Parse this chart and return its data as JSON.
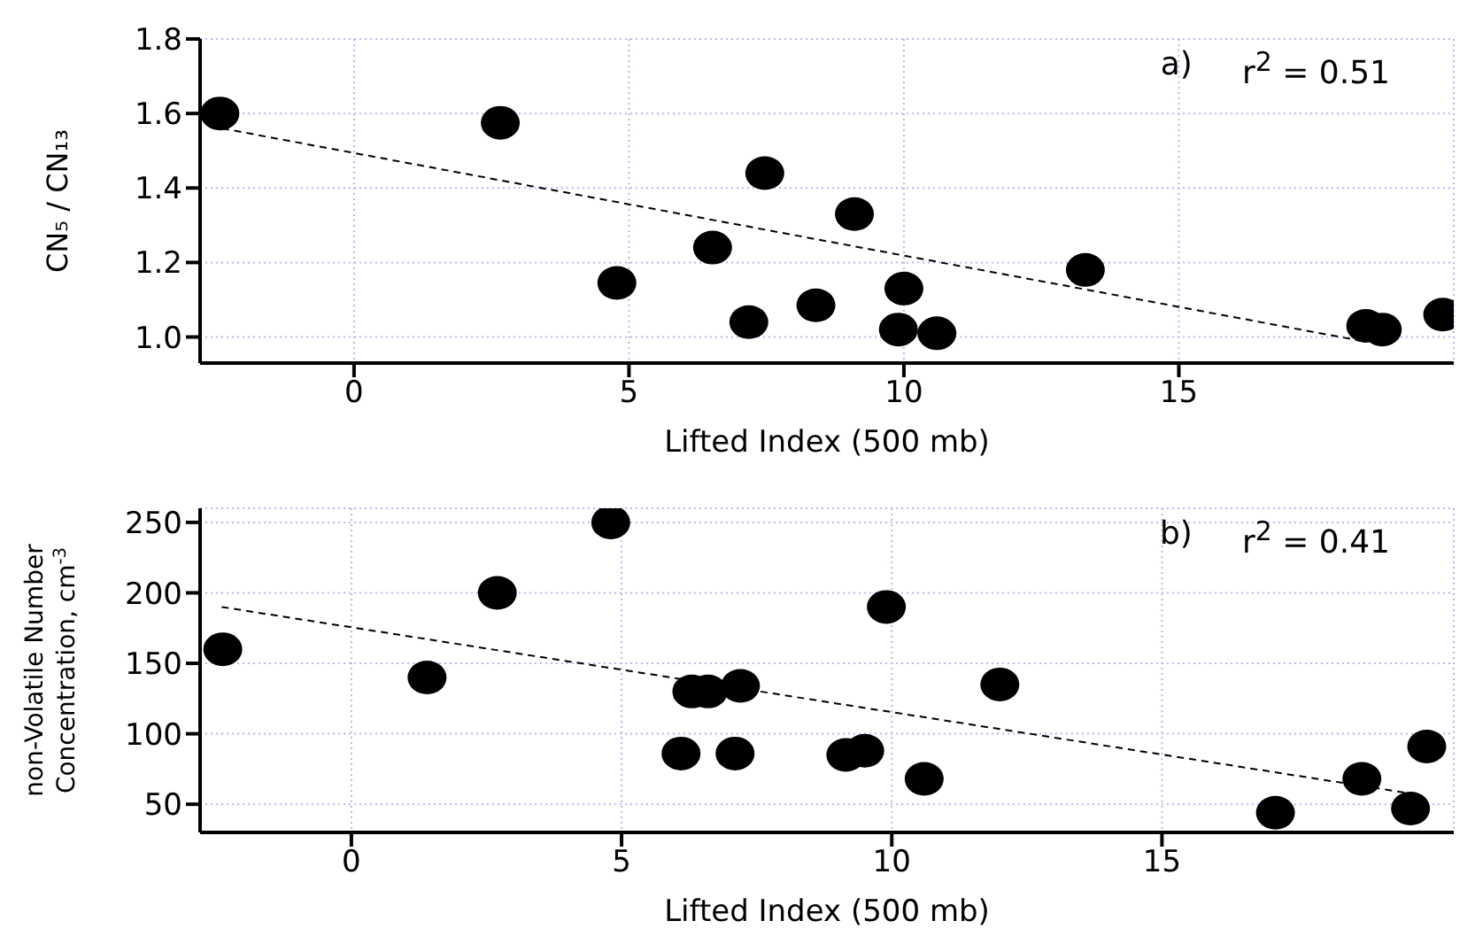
{
  "chart_data": [
    {
      "type": "scatter",
      "xlabel": "Lifted Index (500 mb)",
      "ylabel": "CN₅ / CN₁₃",
      "annotations": [
        "a)",
        "r$^{2}$ = 0.51"
      ],
      "xlim": [
        -2.8,
        20
      ],
      "xticks": [
        0,
        5,
        10,
        15
      ],
      "ylim": [
        0.93,
        1.8
      ],
      "yticks": [
        {
          "value": 1.0,
          "label": "1.0"
        },
        {
          "value": 1.2,
          "label": "1.2"
        },
        {
          "value": 1.4,
          "label": "1.4"
        },
        {
          "value": 1.6,
          "label": "1.6"
        },
        {
          "value": 1.8,
          "label": "1.8"
        }
      ],
      "grid": true,
      "marker": "circle",
      "series": [
        {
          "color": "#000000",
          "x": [
            -2.44,
            2.66,
            4.78,
            6.52,
            7.18,
            7.47,
            8.4,
            9.1,
            9.9,
            10.0,
            10.6,
            13.3,
            18.4,
            18.7,
            19.8
          ],
          "values": [
            1.6,
            1.575,
            1.145,
            1.24,
            1.04,
            1.44,
            1.085,
            1.33,
            1.02,
            1.13,
            1.01,
            1.18,
            1.03,
            1.02,
            1.06
          ]
        },
        {
          "type": "line",
          "color": "#000000",
          "line_style": "dashed",
          "marker": "none",
          "x": [
            -2.4,
            18.3
          ],
          "values": [
            1.56,
            0.99
          ]
        }
      ]
    },
    {
      "type": "scatter",
      "xlabel": "Lifted Index (500 mb)",
      "ylabel": "non-Volatile Number\nConcentration, cm$^{-3}$",
      "annotations": [
        "b)",
        "r$^{2}$ = 0.41"
      ],
      "xlim": [
        -2.8,
        20.4
      ],
      "xticks": [
        0,
        5,
        10,
        15
      ],
      "ylim": [
        30,
        260
      ],
      "yticks": [
        50,
        100,
        150,
        200,
        250
      ],
      "grid": true,
      "marker": "circle",
      "series": [
        {
          "color": "#000000",
          "x": [
            -2.38,
            1.4,
            2.7,
            4.8,
            6.1,
            6.3,
            6.6,
            7.1,
            7.2,
            9.15,
            9.5,
            9.9,
            10.6,
            12.0,
            17.1,
            18.7,
            19.6,
            19.9
          ],
          "values": [
            160,
            140,
            200,
            250,
            86,
            130,
            130,
            86,
            134,
            85,
            88,
            190,
            68,
            135,
            44,
            68,
            47,
            91
          ]
        },
        {
          "type": "line",
          "color": "#000000",
          "line_style": "dashed",
          "marker": "none",
          "x": [
            -2.4,
            19.7
          ],
          "values": [
            190,
            57
          ]
        }
      ]
    }
  ]
}
